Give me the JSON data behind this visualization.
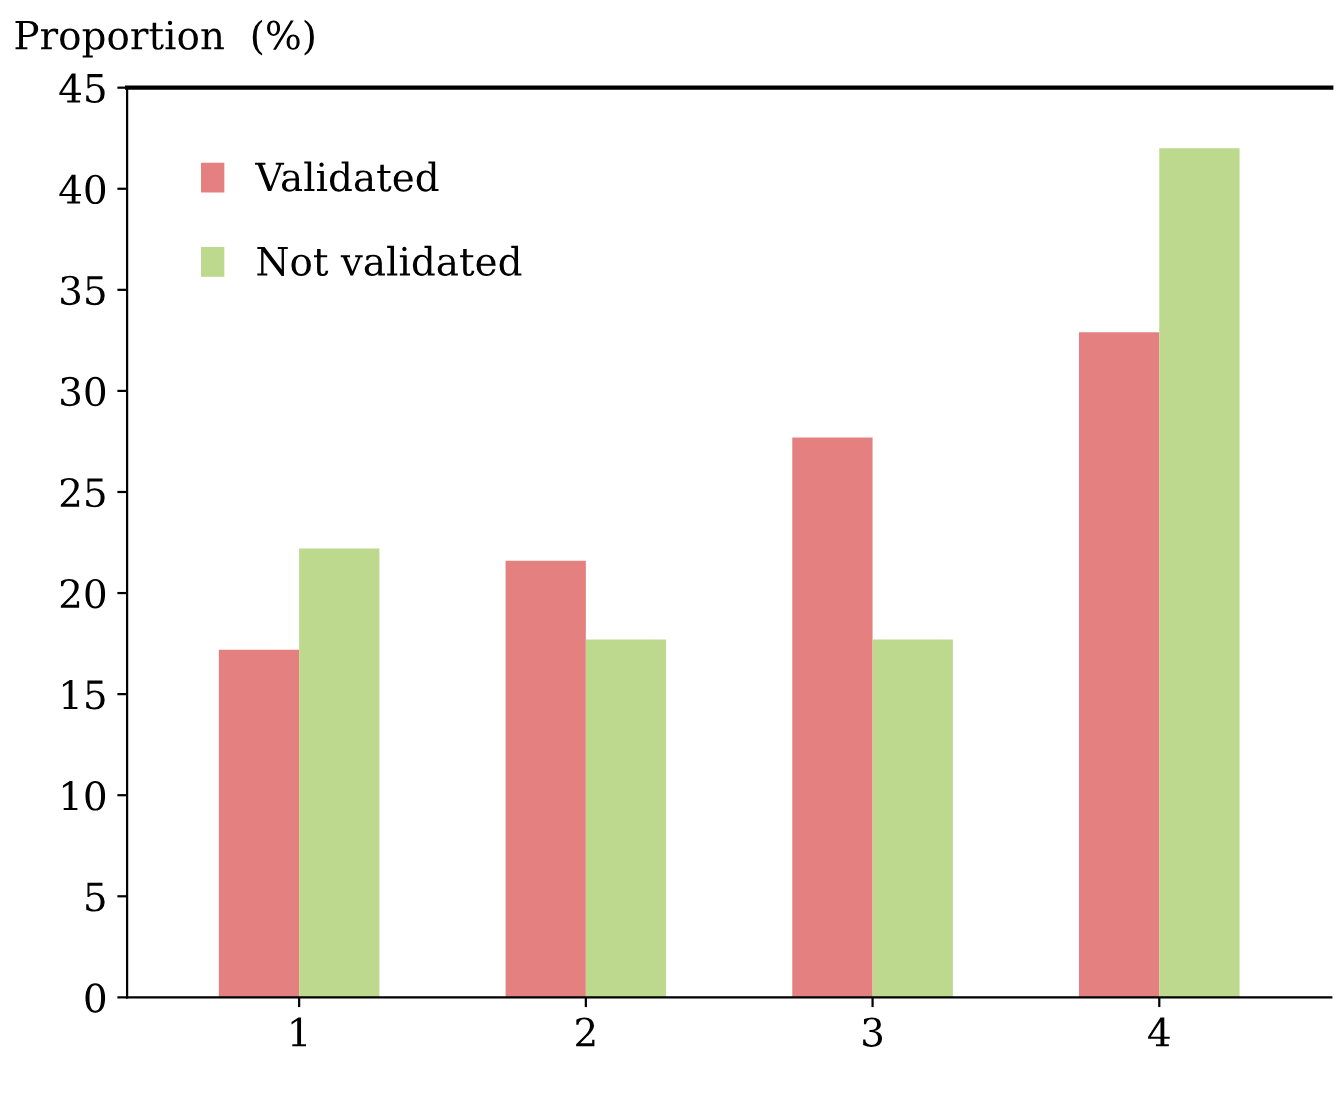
{
  "chart_data": {
    "type": "bar",
    "ylabel": "Proportion  (%)",
    "categories": [
      "1",
      "2",
      "3",
      "4"
    ],
    "series": [
      {
        "name": "Validated",
        "color": "#e48080",
        "values": [
          17.2,
          21.6,
          27.7,
          32.9
        ]
      },
      {
        "name": "Not validated",
        "color": "#bcd98e",
        "values": [
          22.2,
          17.7,
          17.7,
          42.0
        ]
      }
    ],
    "ylim": [
      0,
      45
    ],
    "yticks": [
      0,
      5,
      10,
      15,
      20,
      25,
      30,
      35,
      40,
      45
    ],
    "grid": false,
    "legend": "top left"
  }
}
